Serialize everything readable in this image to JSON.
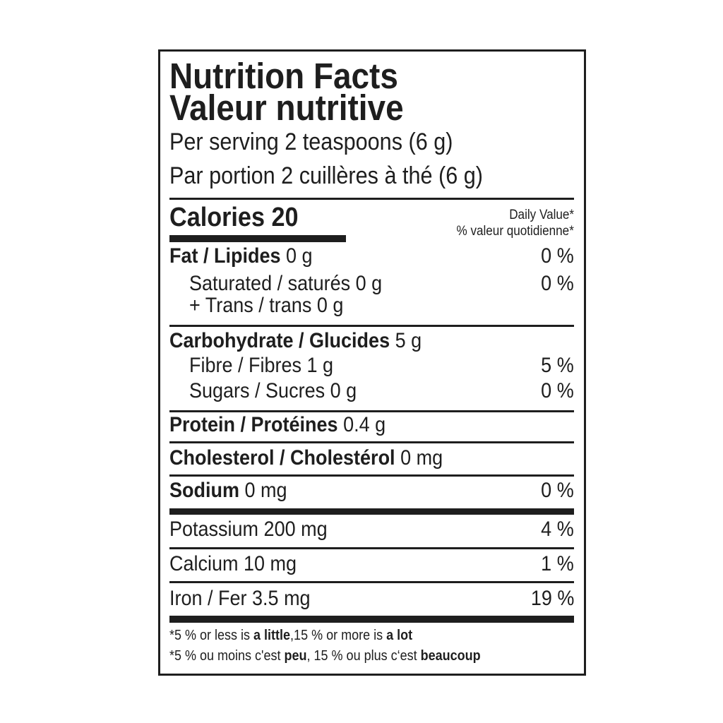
{
  "header": {
    "title_en": "Nutrition Facts",
    "title_fr": "Valeur nutritive",
    "serving_en": "Per serving 2 teaspoons (6 g)",
    "serving_fr": "Par portion 2 cuillères à thé (6 g)"
  },
  "calories": {
    "label": "Calories",
    "value": "20"
  },
  "daily_value": {
    "en": "Daily Value*",
    "fr": "% valeur quotidienne*"
  },
  "nutrients": {
    "fat": {
      "label": "Fat / Lipides",
      "amount": "0 g",
      "dv": "0 %"
    },
    "saturated": {
      "label": "Saturated / saturés 0 g",
      "dv": "0 %"
    },
    "trans": {
      "label": "+ Trans / trans 0 g"
    },
    "carbohydrate": {
      "label": "Carbohydrate / Glucides",
      "amount": "5 g"
    },
    "fibre": {
      "label": "Fibre / Fibres 1 g",
      "dv": "5 %"
    },
    "sugars": {
      "label": "Sugars / Sucres 0 g",
      "dv": "0 %"
    },
    "protein": {
      "label": "Protein / Protéines",
      "amount": "0.4 g"
    },
    "cholesterol": {
      "label": "Cholesterol / Cholestérol",
      "amount": "0 mg"
    },
    "sodium": {
      "label": "Sodium",
      "amount": "0 mg",
      "dv": "0 %"
    },
    "potassium": {
      "label": "Potassium 200 mg",
      "dv": "4 %"
    },
    "calcium": {
      "label": "Calcium 10 mg",
      "dv": "1 %"
    },
    "iron": {
      "label": "Iron / Fer 3.5 mg",
      "dv": "19 %"
    }
  },
  "footnote": {
    "en_1": "*5 % or less is ",
    "en_2": "a little",
    "en_3": ",15 % or more is ",
    "en_4": "a lot",
    "fr_1": "*5 % ou moins c'est ",
    "fr_2": "peu",
    "fr_3": ", 15 % ou plus c‘est ",
    "fr_4": "beaucoup"
  }
}
